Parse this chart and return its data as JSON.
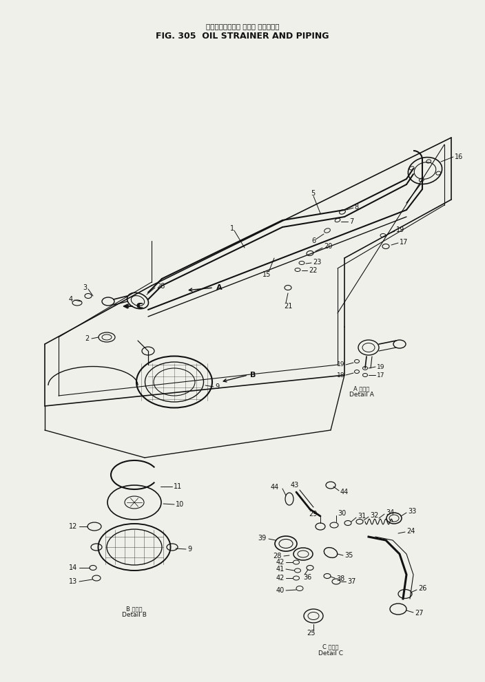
{
  "title_japanese": "オイルストレーナ および パイピング",
  "title_english": "FIG. 305  OIL STRAINER AND PIPING",
  "bg_color": "#f0f0eb",
  "line_color": "#111111",
  "text_color": "#111111",
  "fig_width": 7.04,
  "fig_height": 9.91,
  "detail_a_jp": "A 詳細図",
  "detail_a_en": "Detail A",
  "detail_b_jp": "B 詳細図",
  "detail_b_en": "Detail B",
  "detail_c_jp": "C 詳細図",
  "detail_c_en": "Detail C"
}
